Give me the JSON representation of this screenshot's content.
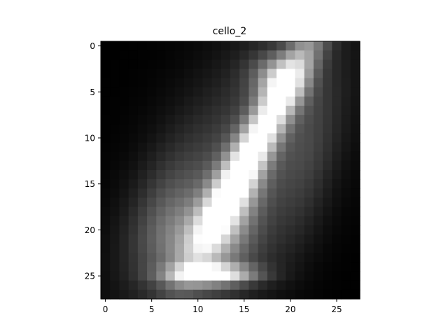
{
  "chart_data": {
    "type": "heatmap",
    "title": "cello_2",
    "xlabel": "",
    "ylabel": "",
    "colormap": "gray",
    "grid": false,
    "nrows": 28,
    "ncols": 28,
    "xlim": [
      -0.5,
      27.5
    ],
    "ylim": [
      27.5,
      -0.5
    ],
    "xticks": [
      0,
      5,
      10,
      15,
      20,
      25
    ],
    "yticks": [
      0,
      5,
      10,
      15,
      20,
      25
    ],
    "value_range": [
      0,
      1
    ],
    "blobs": [
      {
        "cx": 16.8,
        "cy": 9.6,
        "sx": 1.4,
        "sy": 9.5,
        "rot": -28,
        "a": 0.85
      },
      {
        "cx": 14.5,
        "cy": 13.5,
        "sx": 5.5,
        "sy": 12.0,
        "rot": -28,
        "a": 0.3
      },
      {
        "cx": 13.5,
        "cy": 17.5,
        "sx": 2.0,
        "sy": 4.0,
        "rot": -28,
        "a": 0.35
      },
      {
        "cx": 11.5,
        "cy": 24.8,
        "sx": 3.2,
        "sy": 0.7,
        "rot": 0,
        "a": 0.8
      },
      {
        "cx": 10.5,
        "cy": 22.0,
        "sx": 4.0,
        "sy": 3.5,
        "rot": 0,
        "a": 0.32
      },
      {
        "cx": 18.5,
        "cy": 3.5,
        "sx": 2.0,
        "sy": 1.8,
        "rot": -20,
        "a": 0.4
      },
      {
        "cx": 22.0,
        "cy": 12.0,
        "sx": 2.0,
        "sy": 7.0,
        "rot": -10,
        "a": 0.12
      },
      {
        "cx": 6.5,
        "cy": 18.0,
        "sx": 2.5,
        "sy": 5.0,
        "rot": -15,
        "a": 0.15
      }
    ]
  }
}
